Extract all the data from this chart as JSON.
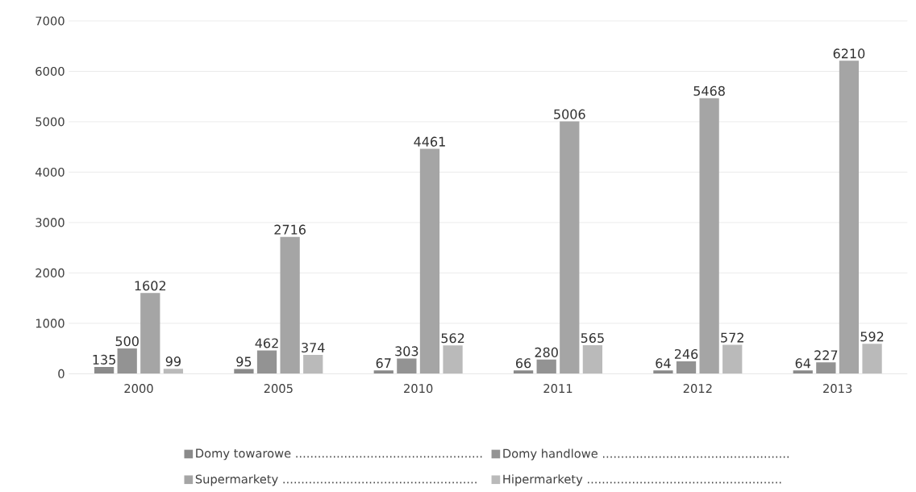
{
  "chart_data": {
    "type": "bar",
    "categories": [
      "2000",
      "2005",
      "2010",
      "2011",
      "2012",
      "2013"
    ],
    "series": [
      {
        "name": "Domy towarowe ..................................................",
        "color": "#8a8a8a",
        "values": [
          135,
          95,
          67,
          66,
          64,
          64
        ]
      },
      {
        "name": "Domy handlowe ..................................................",
        "color": "#939393",
        "values": [
          500,
          462,
          303,
          280,
          246,
          227
        ]
      },
      {
        "name": "Supermarkety ....................................................",
        "color": "#a5a5a5",
        "values": [
          1602,
          2716,
          4461,
          5006,
          5468,
          6210
        ]
      },
      {
        "name": "Hipermarkety ....................................................",
        "color": "#bababa",
        "values": [
          99,
          374,
          562,
          565,
          572,
          592
        ]
      }
    ],
    "ylim": [
      0,
      7000
    ],
    "yticks": [
      0,
      1000,
      2000,
      3000,
      4000,
      5000,
      6000,
      7000
    ],
    "grid": "y",
    "legend": "bottom",
    "data_labels": true
  }
}
